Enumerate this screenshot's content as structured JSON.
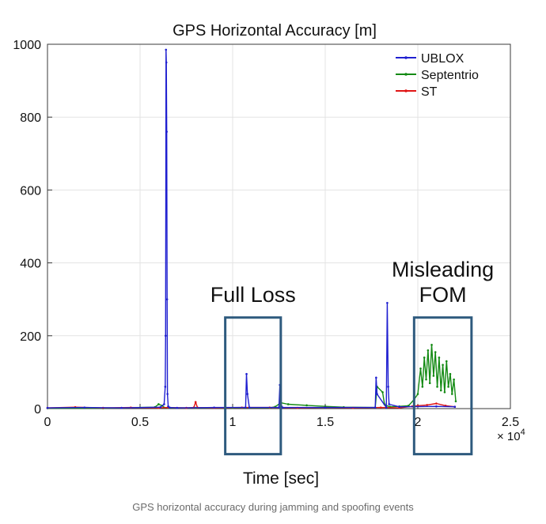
{
  "chart_data": {
    "type": "line",
    "title": "GPS Horizontal Accuracy [m]",
    "xlabel": "Time [sec]",
    "ylabel": "",
    "xlim": [
      0,
      25000
    ],
    "ylim": [
      0,
      1000
    ],
    "x_ticks": [
      0,
      5000,
      10000,
      15000,
      20000,
      25000
    ],
    "x_tick_labels": [
      "0",
      "0.5",
      "1",
      "1.5",
      "2",
      "2.5"
    ],
    "x_multiplier_label": "× 10",
    "x_multiplier_exponent": "4",
    "y_ticks": [
      0,
      200,
      400,
      600,
      800,
      1000
    ],
    "y_tick_labels": [
      "0",
      "200",
      "400",
      "600",
      "800",
      "1000"
    ],
    "grid": true,
    "legend": "top-right",
    "series": [
      {
        "name": "UBLOX",
        "color": "#1f1fd0",
        "x": [
          0,
          2000,
          4000,
          6100,
          6300,
          6360,
          6380,
          6400,
          6420,
          6440,
          6460,
          6480,
          6520,
          6600,
          7000,
          9000,
          10700,
          10750,
          10800,
          10900,
          12500,
          12550,
          12600,
          12700,
          15000,
          17700,
          17750,
          17800,
          18300,
          18350,
          18400,
          18450,
          19000,
          21000,
          22000
        ],
        "y": [
          2,
          3,
          2,
          4,
          12,
          60,
          200,
          985,
          950,
          760,
          300,
          40,
          6,
          3,
          2,
          3,
          3,
          95,
          40,
          3,
          3,
          65,
          12,
          3,
          3,
          3,
          85,
          40,
          3,
          290,
          60,
          12,
          5,
          6,
          5
        ]
      },
      {
        "name": "Septentrio",
        "color": "#138a13",
        "x": [
          0,
          3000,
          5800,
          6000,
          6200,
          6300,
          6500,
          8000,
          10000,
          12000,
          12300,
          12600,
          13000,
          14000,
          15000,
          16000,
          17700,
          17800,
          18100,
          18200,
          18300,
          18500,
          19000,
          19500,
          19800,
          20000,
          20150,
          20250,
          20350,
          20450,
          20550,
          20650,
          20750,
          20850,
          20950,
          21050,
          21150,
          21250,
          21350,
          21450,
          21550,
          21650,
          21750,
          21850,
          21950,
          22050
        ],
        "y": [
          1,
          1,
          4,
          12,
          8,
          3,
          2,
          2,
          2,
          2,
          5,
          16,
          12,
          9,
          6,
          4,
          3,
          60,
          45,
          12,
          8,
          5,
          6,
          8,
          25,
          40,
          110,
          60,
          140,
          80,
          160,
          70,
          175,
          90,
          155,
          60,
          140,
          50,
          120,
          45,
          130,
          60,
          95,
          40,
          80,
          20
        ]
      },
      {
        "name": "ST",
        "color": "#e01515",
        "x": [
          0,
          1500,
          3000,
          4500,
          6000,
          6500,
          7500,
          7900,
          8000,
          8100,
          9000,
          10500,
          12000,
          13500,
          15000,
          16500,
          18000,
          19000,
          19700,
          20000,
          20500,
          21000,
          21500,
          22000
        ],
        "y": [
          2,
          4,
          2,
          3,
          2,
          3,
          2,
          3,
          18,
          3,
          2,
          3,
          3,
          2,
          3,
          2,
          3,
          2,
          6,
          8,
          10,
          14,
          8,
          5
        ]
      }
    ],
    "annotations": [
      {
        "label": "Full Loss",
        "x_range": [
          9600,
          12600
        ],
        "y_range": [
          -125,
          250
        ],
        "label_lines": [
          "Full Loss"
        ]
      },
      {
        "label": "Misleading FOM",
        "x_range": [
          19800,
          22900
        ],
        "y_range": [
          -125,
          250
        ],
        "label_lines": [
          "Misleading",
          "FOM"
        ]
      }
    ]
  },
  "caption": "GPS horizontal accuracy during jamming and spoofing events",
  "colors": {
    "annotation_box": "#2e5a7e",
    "grid": "#e3e3e3"
  }
}
